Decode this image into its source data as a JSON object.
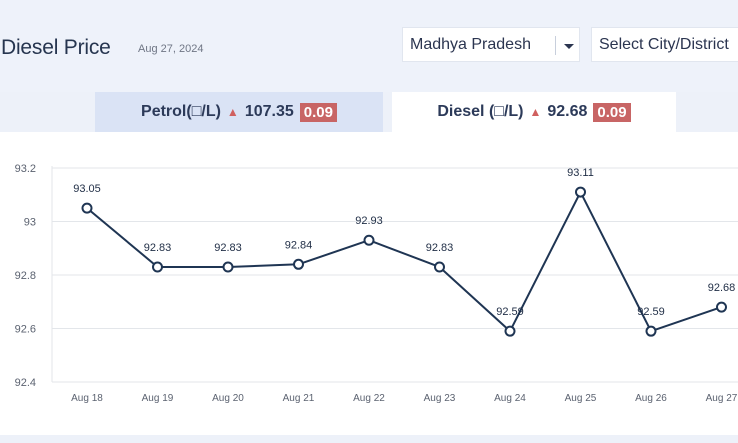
{
  "header": {
    "title": "Diesel Price",
    "date": "Aug 27, 2024"
  },
  "filters": {
    "state": "Madhya Pradesh",
    "state_icon": "chevron-down-icon",
    "city_placeholder": "Select City/District"
  },
  "tabs": [
    {
      "label": "Petrol(□/L)",
      "value": "107.35",
      "change": "0.09",
      "trend_icon": "triangle-up-icon",
      "active": false
    },
    {
      "label": "Diesel (□/L)",
      "value": "92.68",
      "change": "0.09",
      "trend_icon": "triangle-up-icon",
      "active": true
    }
  ],
  "colors": {
    "line": "#1f3553",
    "badge": "#c86565",
    "up_arrow": "#d0605f",
    "active_tab": "#ffffff",
    "inactive_tab": "#dae3f5"
  },
  "chart_data": {
    "type": "line",
    "categories": [
      "Aug 18",
      "Aug 19",
      "Aug 20",
      "Aug 21",
      "Aug 22",
      "Aug 23",
      "Aug 24",
      "Aug 25",
      "Aug 26",
      "Aug 27"
    ],
    "values": [
      93.05,
      92.83,
      92.83,
      92.84,
      92.93,
      92.83,
      92.59,
      93.11,
      92.59,
      92.68
    ],
    "data_labels": [
      "93.05",
      "92.83",
      "92.83",
      "92.84",
      "92.93",
      "92.83",
      "92.59",
      "93.11",
      "92.59",
      "92.68"
    ],
    "y_ticks": [
      "92.4",
      "92.6",
      "92.8",
      "93",
      "93.2"
    ],
    "ylim": [
      92.4,
      93.2
    ],
    "grid": true
  }
}
